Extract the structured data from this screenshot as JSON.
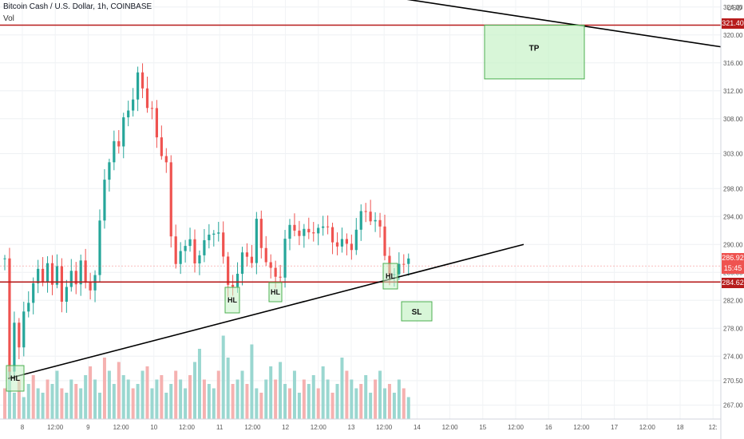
{
  "header": {
    "title": "Bitcoin Cash / U.S. Dollar, 1h, COINBASE",
    "vol_label": "Vol"
  },
  "price_axis": {
    "currency": "USD"
  },
  "tags": {
    "upper_level": "321.40",
    "last_price": "286.92",
    "countdown": "15:45",
    "lower_level": "284.62"
  },
  "colors": {
    "up": "#26a69a",
    "down": "#ef5350",
    "level": "#b71c1c",
    "zone_fill": "#c8f2c8",
    "zone_stroke": "#4caf50",
    "trend": "#000000"
  },
  "chart_data": {
    "type": "candlestick",
    "title": "Bitcoin Cash / U.S. Dollar, 1h, COINBASE",
    "ylim": [
      265,
      325
    ],
    "y_ticks": [
      "267.00",
      "270.50",
      "274.00",
      "278.00",
      "282.00",
      "286.00",
      "290.00",
      "294.00",
      "298.00",
      "303.00",
      "308.00",
      "312.00",
      "316.00",
      "320.00",
      "324.00"
    ],
    "x_ticks": [
      "8",
      "12:00",
      "9",
      "12:00",
      "10",
      "12:00",
      "11",
      "12:00",
      "12",
      "12:00",
      "13",
      "12:00",
      "14",
      "12:00",
      "15",
      "12:00",
      "16",
      "12:00",
      "17",
      "12:00",
      "18",
      "12:"
    ],
    "price_path": [
      [
        0,
        288
      ],
      [
        6,
        271
      ],
      [
        12,
        279
      ],
      [
        18,
        276
      ],
      [
        24,
        280
      ],
      [
        30,
        281
      ],
      [
        36,
        285
      ],
      [
        42,
        287
      ],
      [
        48,
        284
      ],
      [
        54,
        287
      ],
      [
        60,
        285
      ],
      [
        66,
        287
      ],
      [
        72,
        281
      ],
      [
        78,
        284
      ],
      [
        84,
        287
      ],
      [
        90,
        284
      ],
      [
        96,
        287
      ],
      [
        102,
        285
      ],
      [
        108,
        284
      ],
      [
        114,
        285
      ],
      [
        120,
        293
      ],
      [
        126,
        300
      ],
      [
        132,
        302
      ],
      [
        138,
        304
      ],
      [
        144,
        304
      ],
      [
        150,
        309
      ],
      [
        156,
        309
      ],
      [
        162,
        310
      ],
      [
        168,
        315
      ],
      [
        174,
        313
      ],
      [
        180,
        309
      ],
      [
        186,
        309
      ],
      [
        192,
        306
      ],
      [
        198,
        303
      ],
      [
        204,
        301
      ],
      [
        210,
        291
      ],
      [
        216,
        288
      ],
      [
        222,
        289
      ],
      [
        228,
        289
      ],
      [
        234,
        291
      ],
      [
        240,
        288
      ],
      [
        246,
        288
      ],
      [
        252,
        290
      ],
      [
        258,
        292
      ],
      [
        264,
        292
      ],
      [
        270,
        291
      ],
      [
        276,
        288
      ],
      [
        282,
        285
      ],
      [
        288,
        284
      ],
      [
        294,
        285
      ],
      [
        300,
        289
      ],
      [
        306,
        289
      ],
      [
        312,
        287
      ],
      [
        318,
        293
      ],
      [
        324,
        290
      ],
      [
        330,
        288
      ],
      [
        336,
        286
      ],
      [
        342,
        285
      ],
      [
        348,
        286
      ],
      [
        354,
        291
      ],
      [
        360,
        292
      ],
      [
        366,
        292
      ],
      [
        372,
        292
      ],
      [
        378,
        292
      ],
      [
        384,
        291
      ],
      [
        390,
        292
      ],
      [
        396,
        293
      ],
      [
        402,
        292
      ],
      [
        408,
        292
      ],
      [
        414,
        291
      ],
      [
        420,
        290
      ],
      [
        426,
        290
      ],
      [
        432,
        290
      ],
      [
        438,
        290
      ],
      [
        444,
        292
      ],
      [
        450,
        294
      ],
      [
        456,
        295
      ],
      [
        462,
        294
      ],
      [
        468,
        293
      ],
      [
        474,
        292
      ],
      [
        480,
        289
      ],
      [
        486,
        286
      ],
      [
        492,
        285
      ],
      [
        498,
        287
      ],
      [
        504,
        288
      ],
      [
        510,
        288
      ],
      [
        514,
        287
      ]
    ],
    "volumes": [
      0.35,
      0.55,
      0.3,
      0.45,
      0.25,
      0.4,
      0.5,
      0.35,
      0.3,
      0.45,
      0.4,
      0.55,
      0.35,
      0.3,
      0.45,
      0.4,
      0.35,
      0.5,
      0.6,
      0.45,
      0.3,
      0.7,
      0.55,
      0.4,
      0.65,
      0.5,
      0.45,
      0.35,
      0.4,
      0.55,
      0.6,
      0.35,
      0.45,
      0.5,
      0.3,
      0.4,
      0.55,
      0.45,
      0.35,
      0.5,
      0.65,
      0.8,
      0.45,
      0.4,
      0.35,
      0.55,
      0.95,
      0.7,
      0.4,
      0.45,
      0.55,
      0.4,
      0.85,
      0.35,
      0.3,
      0.45,
      0.6,
      0.45,
      0.65,
      0.4,
      0.35,
      0.55,
      0.3,
      0.45,
      0.4,
      0.5,
      0.35,
      0.6,
      0.45,
      0.3,
      0.4,
      0.7,
      0.55,
      0.45,
      0.35,
      0.4,
      0.5,
      0.3,
      0.45,
      0.55,
      0.35,
      0.4,
      0.3,
      0.45,
      0.35,
      0.25
    ],
    "annotations": [
      {
        "label": "HL",
        "price": 270.8,
        "index": 3
      },
      {
        "label": "HL",
        "price": 283.0,
        "index": 49
      },
      {
        "label": "HL",
        "price": 283.2,
        "index": 58
      },
      {
        "label": "HL",
        "price": 285.0,
        "index": 82
      },
      {
        "label": "TP",
        "price_top": 321.4,
        "price_bottom": 313.7
      },
      {
        "label": "SL",
        "price_top": 281.8,
        "price_bottom": 279.6
      }
    ],
    "levels": [
      321.4,
      284.62
    ],
    "trendlines": [
      {
        "name": "support",
        "from": [
          270.8,
          0
        ],
        "to": [
          290.0,
          1
        ]
      },
      {
        "name": "resistance",
        "from": [
          325.5,
          0
        ],
        "to": [
          318.3,
          1
        ]
      }
    ]
  }
}
